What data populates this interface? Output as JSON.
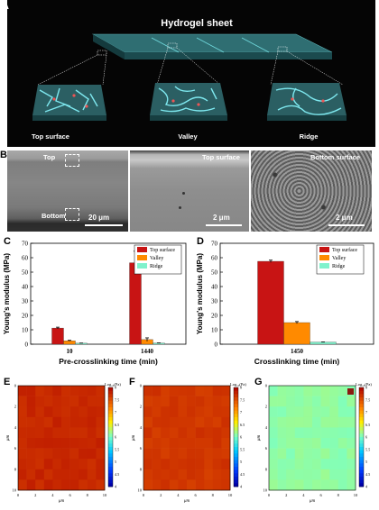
{
  "panel_letters": {
    "a": "A",
    "b": "B",
    "c": "C",
    "d": "D",
    "e": "E",
    "f": "F",
    "g": "G"
  },
  "panelA": {
    "title": "Hydrogel sheet",
    "insets": [
      "Top surface",
      "Valley",
      "Ridge"
    ]
  },
  "panelB": {
    "labels": {
      "top": "Top",
      "bottom": "Bottom",
      "mid": "Top surface",
      "right": "Bottom surface"
    },
    "scalebars": [
      "20 μm",
      "2 μm",
      "2 μm"
    ]
  },
  "colors": {
    "top_surface": "#c81414",
    "valley": "#ff8a00",
    "ridge": "#7ff2cc"
  },
  "chart_data": [
    {
      "type": "bar",
      "panel": "C",
      "ylabel": "Young's modulus (MPa)",
      "xlabel": "Pre-crosslinking time (min)",
      "ylim": [
        0,
        70
      ],
      "yticks": [
        0,
        10,
        20,
        30,
        40,
        50,
        60,
        70
      ],
      "categories": [
        "10",
        "1440"
      ],
      "series": [
        {
          "name": "Top surface",
          "values": [
            11.2,
            56.5
          ],
          "errors": [
            0.6,
            8.0
          ]
        },
        {
          "name": "Valley",
          "values": [
            2.4,
            3.2
          ],
          "errors": [
            0.3,
            1.2
          ]
        },
        {
          "name": "Ridge",
          "values": [
            0.7,
            0.8
          ],
          "errors": [
            0.1,
            0.1
          ]
        }
      ],
      "legend": "top-right"
    },
    {
      "type": "bar",
      "panel": "D",
      "ylabel": "Young's modulus (MPa)",
      "xlabel": "Crosslinking time (min)",
      "ylim": [
        0,
        70
      ],
      "yticks": [
        0,
        10,
        20,
        30,
        40,
        50,
        60,
        70
      ],
      "categories": [
        "1450"
      ],
      "series": [
        {
          "name": "Top surface",
          "values": [
            57.5
          ],
          "errors": [
            0.8
          ]
        },
        {
          "name": "Valley",
          "values": [
            15.0
          ],
          "errors": [
            0.7
          ]
        },
        {
          "name": "Ridge",
          "values": [
            1.5
          ],
          "errors": [
            0.1
          ]
        }
      ],
      "legend": "top-right"
    },
    {
      "type": "heatmap",
      "panel": "E",
      "xlabel": "μm",
      "ylabel": "μm",
      "xticks": [
        "0",
        "2",
        "4",
        "6",
        "8",
        "10"
      ],
      "yticks": [
        "0",
        "2",
        "4",
        "6",
        "8",
        "10"
      ],
      "colorbar_title": "Log₁₀(Pa)",
      "colorbar_ticks": [
        "8",
        "7.5",
        "7",
        "6.5",
        "6",
        "5.5",
        "5",
        "4.5",
        "4"
      ],
      "dominant_value": 7.8
    },
    {
      "type": "heatmap",
      "panel": "F",
      "xlabel": "μm",
      "ylabel": "μm",
      "xticks": [
        "0",
        "2",
        "4",
        "6",
        "8",
        "10"
      ],
      "yticks": [
        "0",
        "2",
        "4",
        "6",
        "8",
        "10"
      ],
      "colorbar_title": "Log₁₀(Pa)",
      "colorbar_ticks": [
        "8",
        "7.5",
        "7",
        "6.5",
        "6",
        "5.5",
        "5",
        "4.5",
        "4"
      ],
      "dominant_value": 7.7
    },
    {
      "type": "heatmap",
      "panel": "G",
      "xlabel": "μm",
      "ylabel": "μm",
      "xticks": [
        "0",
        "2",
        "4",
        "6",
        "8",
        "10"
      ],
      "yticks": [
        "0",
        "2",
        "4",
        "6",
        "8",
        "10"
      ],
      "colorbar_title": "Log₁₀(Pa)",
      "colorbar_ticks": [
        "8",
        "7.5",
        "7",
        "6.5",
        "6",
        "5.5",
        "5",
        "4.5",
        "4"
      ],
      "dominant_value": 6.1
    }
  ]
}
